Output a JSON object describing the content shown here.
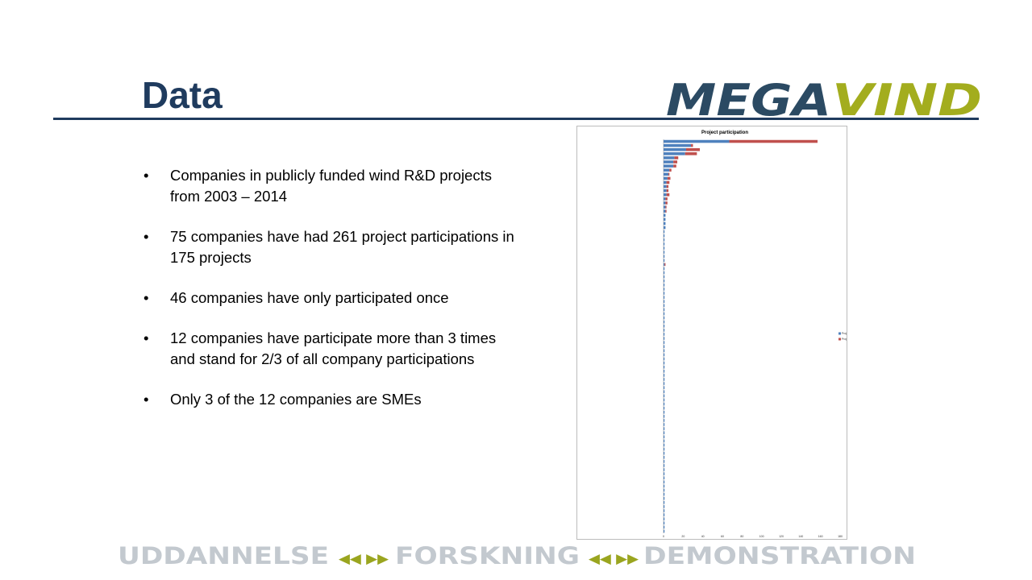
{
  "slide": {
    "title": "Data",
    "logo_parts": [
      "MEGA",
      "VIND"
    ],
    "bullets": [
      "Companies in publicly funded wind R&D projects from 2003 – 2014",
      "75 companies have had 261 project participations in 175 projects",
      "46 companies have only participated once",
      "12 companies have participate more than 3 times and stand for 2/3 of all company participations",
      "Only 3 of the 12 companies are SMEs"
    ],
    "footer": {
      "words": [
        "UDDANNELSE",
        "FORSKNING",
        "DEMONSTRATION"
      ],
      "separator": "◀◀ ▶▶"
    },
    "colors": {
      "title": "#1f3b5e",
      "logo_dark": "#2b4a63",
      "logo_green": "#a3ad1e",
      "footer_text": "#c3c9cf",
      "footer_arrows": "#9aa51f"
    }
  },
  "chart_data": {
    "type": "bar",
    "orientation": "horizontal",
    "stacked": true,
    "title": "Project participation",
    "legend_position": "right",
    "xlim": [
      0,
      180
    ],
    "xticks": [
      0,
      20,
      40,
      60,
      80,
      100,
      120,
      140,
      160,
      180
    ],
    "series": [
      {
        "name": "Project participation",
        "color": "#4f81bd",
        "values": [
          67,
          28,
          23,
          22,
          11,
          10,
          10,
          6,
          5,
          4,
          3,
          3,
          3,
          3,
          2,
          2,
          2,
          2,
          2,
          2,
          2,
          2,
          1,
          1,
          1,
          1,
          1,
          1,
          1,
          1,
          1,
          1,
          1,
          1,
          1,
          1,
          1,
          1,
          1,
          1,
          1,
          1,
          1,
          1,
          1,
          1,
          1,
          1,
          1,
          1,
          1,
          1,
          1,
          1,
          1,
          1,
          1,
          1,
          1,
          1,
          1,
          1,
          1,
          1,
          1,
          1,
          1,
          1,
          1,
          1,
          1,
          1,
          1,
          1,
          1,
          1,
          1,
          1,
          1,
          1,
          1,
          1,
          1,
          1,
          1,
          1,
          1,
          1,
          1,
          1,
          1,
          1,
          1,
          1,
          1,
          1
        ]
      },
      {
        "name": "Project leader",
        "color": "#c0504d",
        "values": [
          90,
          2,
          14,
          12,
          4,
          4,
          3,
          2,
          1,
          3,
          3,
          2,
          2,
          3,
          2,
          2,
          1,
          1,
          0,
          0,
          0,
          0,
          0,
          0,
          0,
          0,
          0,
          0,
          0,
          0,
          1,
          0,
          0,
          0,
          0,
          0,
          0,
          0,
          0,
          0,
          0,
          0,
          0,
          0,
          0,
          0,
          0,
          0,
          0,
          0,
          0,
          0,
          0,
          0,
          0,
          0,
          0,
          0,
          0,
          0,
          0,
          0,
          0,
          0,
          0,
          0,
          0,
          0,
          0,
          0,
          0,
          0,
          0,
          0,
          0,
          0,
          0,
          0,
          0,
          0,
          0,
          0,
          0,
          0,
          0,
          0,
          0,
          0,
          0,
          0,
          0,
          0,
          0,
          0,
          0,
          0
        ]
      }
    ]
  }
}
